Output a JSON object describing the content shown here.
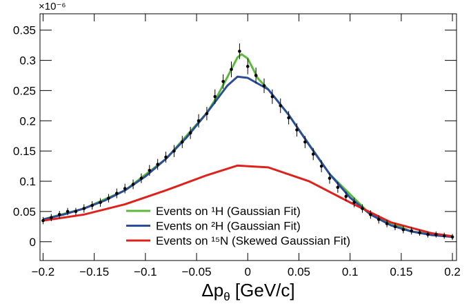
{
  "chart_data": {
    "type": "scatter",
    "y_multiplier": "×10⁻⁶",
    "x_label": {
      "main": "Δp",
      "sub": "θ",
      "rest": " [GeV/c]"
    },
    "xlim": [
      -0.203,
      0.204
    ],
    "ylim": [
      -0.031,
      0.377
    ],
    "xticks": [
      {
        "value": -0.2,
        "label": "−0.2"
      },
      {
        "value": -0.15,
        "label": "−0.15"
      },
      {
        "value": -0.1,
        "label": "−0.1"
      },
      {
        "value": -0.05,
        "label": "−0.05"
      },
      0,
      0.05,
      0.1,
      0.15,
      0.2
    ],
    "yticks": [
      0,
      0.05,
      0.1,
      0.15,
      0.2,
      0.25,
      0.3,
      0.35
    ],
    "points": {
      "color": "#000000",
      "x": [
        -0.2,
        -0.192,
        -0.184,
        -0.176,
        -0.168,
        -0.16,
        -0.152,
        -0.144,
        -0.136,
        -0.128,
        -0.12,
        -0.112,
        -0.104,
        -0.096,
        -0.088,
        -0.08,
        -0.072,
        -0.064,
        -0.056,
        -0.048,
        -0.04,
        -0.032,
        -0.024,
        -0.016,
        -0.008,
        0,
        0.008,
        0.016,
        0.024,
        0.032,
        0.04,
        0.048,
        0.056,
        0.064,
        0.072,
        0.08,
        0.088,
        0.096,
        0.104,
        0.112,
        0.12,
        0.128,
        0.136,
        0.144,
        0.152,
        0.16,
        0.168,
        0.176,
        0.184,
        0.192,
        0.2
      ],
      "values": [
        0.035,
        0.04,
        0.045,
        0.05,
        0.05,
        0.055,
        0.06,
        0.065,
        0.072,
        0.08,
        0.088,
        0.095,
        0.105,
        0.118,
        0.128,
        0.14,
        0.15,
        0.165,
        0.18,
        0.2,
        0.212,
        0.24,
        0.265,
        0.285,
        0.315,
        0.29,
        0.275,
        0.258,
        0.24,
        0.225,
        0.205,
        0.185,
        0.165,
        0.145,
        0.125,
        0.105,
        0.09,
        0.075,
        0.065,
        0.055,
        0.045,
        0.037,
        0.03,
        0.025,
        0.02,
        0.018,
        0.015,
        0.012,
        0.012,
        0.01,
        0.008
      ],
      "errors": [
        0.006,
        0.006,
        0.006,
        0.006,
        0.006,
        0.007,
        0.007,
        0.007,
        0.007,
        0.008,
        0.008,
        0.008,
        0.008,
        0.009,
        0.009,
        0.009,
        0.01,
        0.01,
        0.01,
        0.011,
        0.011,
        0.012,
        0.012,
        0.013,
        0.013,
        0.013,
        0.013,
        0.012,
        0.012,
        0.012,
        0.011,
        0.011,
        0.01,
        0.01,
        0.01,
        0.009,
        0.009,
        0.008,
        0.008,
        0.007,
        0.007,
        0.007,
        0.006,
        0.006,
        0.006,
        0.006,
        0.005,
        0.005,
        0.005,
        0.005,
        0.005
      ]
    },
    "series": [
      {
        "name": "Events on ¹H (Gaussian Fit)",
        "color": "#5cb83a",
        "x": [
          -0.2,
          -0.16,
          -0.12,
          -0.08,
          -0.04,
          -0.03,
          -0.02,
          -0.01,
          -0.006,
          0,
          0.01,
          0.02,
          0.04,
          0.08,
          0.12,
          0.16,
          0.2
        ],
        "values": [
          0.037,
          0.055,
          0.085,
          0.137,
          0.213,
          0.24,
          0.272,
          0.305,
          0.31,
          0.303,
          0.27,
          0.252,
          0.21,
          0.112,
          0.045,
          0.017,
          0.008
        ]
      },
      {
        "name": "Events on ²H (Gaussian Fit)",
        "color": "#2b4c9b",
        "x": [
          -0.2,
          -0.18,
          -0.16,
          -0.14,
          -0.12,
          -0.1,
          -0.08,
          -0.06,
          -0.04,
          -0.02,
          -0.01,
          0,
          0.02,
          0.04,
          0.06,
          0.08,
          0.1,
          0.12,
          0.14,
          0.16,
          0.18,
          0.2
        ],
        "values": [
          0.037,
          0.045,
          0.055,
          0.068,
          0.085,
          0.108,
          0.137,
          0.172,
          0.213,
          0.258,
          0.273,
          0.271,
          0.252,
          0.21,
          0.16,
          0.112,
          0.073,
          0.045,
          0.027,
          0.017,
          0.011,
          0.008
        ]
      },
      {
        "name": "Events on ¹⁵N (Skewed Gaussian Fit)",
        "color": "#e0201b",
        "x": [
          -0.2,
          -0.16,
          -0.12,
          -0.08,
          -0.04,
          -0.01,
          0.02,
          0.06,
          0.1,
          0.14,
          0.18,
          0.2
        ],
        "values": [
          0.035,
          0.045,
          0.062,
          0.085,
          0.11,
          0.126,
          0.123,
          0.1,
          0.065,
          0.032,
          0.014,
          0.009
        ]
      }
    ]
  }
}
